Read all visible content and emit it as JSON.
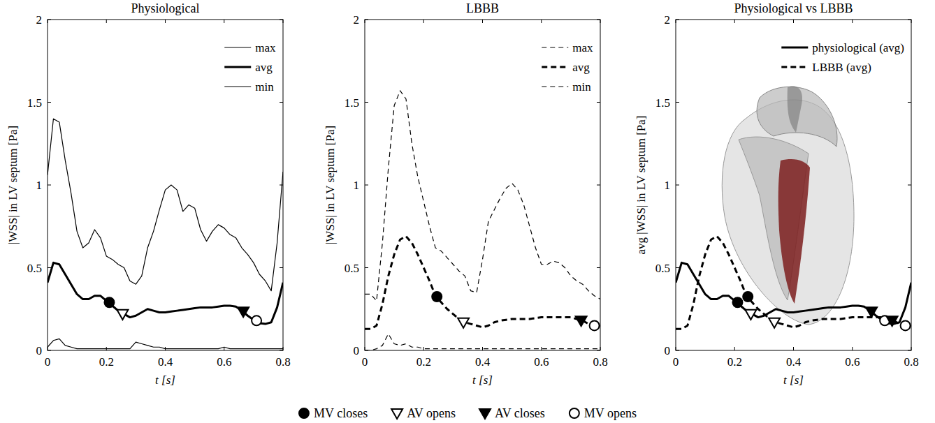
{
  "chart_data": [
    {
      "type": "line",
      "title": "Physiological",
      "x_label": "t [s]",
      "y_label": "|WSS| in LV septum [Pa]",
      "xlim": [
        0,
        0.8
      ],
      "xticks": [
        0,
        0.2,
        0.4,
        0.6,
        0.8
      ],
      "ylim": [
        0,
        2
      ],
      "yticks": [
        0,
        0.5,
        1,
        1.5,
        2
      ],
      "grid": false,
      "legend": "upper right",
      "x": [
        0,
        0.02,
        0.04,
        0.06,
        0.08,
        0.1,
        0.12,
        0.14,
        0.16,
        0.18,
        0.2,
        0.22,
        0.24,
        0.26,
        0.28,
        0.3,
        0.32,
        0.34,
        0.36,
        0.38,
        0.4,
        0.42,
        0.44,
        0.46,
        0.48,
        0.5,
        0.52,
        0.54,
        0.56,
        0.58,
        0.6,
        0.62,
        0.64,
        0.66,
        0.68,
        0.7,
        0.72,
        0.74,
        0.76,
        0.78,
        0.8
      ],
      "series": [
        {
          "name": "max",
          "color": "#000000",
          "line_style": "solid",
          "values": [
            1.06,
            1.4,
            1.38,
            1.15,
            0.95,
            0.72,
            0.62,
            0.65,
            0.73,
            0.68,
            0.57,
            0.55,
            0.52,
            0.5,
            0.42,
            0.4,
            0.45,
            0.62,
            0.72,
            0.85,
            0.97,
            1.0,
            0.97,
            0.84,
            0.88,
            0.86,
            0.73,
            0.66,
            0.72,
            0.76,
            0.74,
            0.7,
            0.68,
            0.62,
            0.58,
            0.53,
            0.46,
            0.42,
            0.36,
            0.65,
            1.08
          ]
        },
        {
          "name": "avg",
          "color": "#000000",
          "line_style": "solid",
          "values": [
            0.41,
            0.53,
            0.52,
            0.46,
            0.4,
            0.34,
            0.31,
            0.31,
            0.33,
            0.33,
            0.3,
            0.27,
            0.24,
            0.22,
            0.2,
            0.21,
            0.23,
            0.25,
            0.24,
            0.23,
            0.23,
            0.235,
            0.24,
            0.245,
            0.25,
            0.255,
            0.26,
            0.26,
            0.26,
            0.265,
            0.27,
            0.27,
            0.265,
            0.24,
            0.21,
            0.185,
            0.165,
            0.16,
            0.17,
            0.26,
            0.41
          ],
          "events": {
            "x": [
              0.21,
              0.255,
              0.665,
              0.71
            ],
            "values": [
              0.29,
              0.22,
              0.235,
              0.18
            ]
          }
        },
        {
          "name": "min",
          "color": "#000000",
          "line_style": "solid",
          "values": [
            0.02,
            0.06,
            0.07,
            0.03,
            0.02,
            0.01,
            0.01,
            0.01,
            0.01,
            0.01,
            0.01,
            0.01,
            0.01,
            0.01,
            0.01,
            0.05,
            0.04,
            0.03,
            0.02,
            0.02,
            0.01,
            0.01,
            0.01,
            0.01,
            0.01,
            0.01,
            0.01,
            0.01,
            0.01,
            0.01,
            0.02,
            0.01,
            0.01,
            0.01,
            0.01,
            0.01,
            0.01,
            0.01,
            0.01,
            0.01,
            0.01
          ]
        }
      ]
    },
    {
      "type": "line",
      "title": "LBBB",
      "x_label": "t [s]",
      "y_label": "|WSS| in LV septum [Pa]",
      "xlim": [
        0,
        0.8
      ],
      "xticks": [
        0,
        0.2,
        0.4,
        0.6,
        0.8
      ],
      "ylim": [
        0,
        2
      ],
      "yticks": [
        0,
        0.5,
        1,
        1.5,
        2
      ],
      "grid": false,
      "legend": "upper right",
      "x": [
        0,
        0.02,
        0.04,
        0.06,
        0.08,
        0.1,
        0.12,
        0.14,
        0.16,
        0.18,
        0.2,
        0.22,
        0.24,
        0.26,
        0.28,
        0.3,
        0.32,
        0.34,
        0.36,
        0.38,
        0.4,
        0.42,
        0.44,
        0.46,
        0.48,
        0.5,
        0.52,
        0.54,
        0.56,
        0.58,
        0.6,
        0.62,
        0.64,
        0.66,
        0.68,
        0.7,
        0.72,
        0.74,
        0.76,
        0.78,
        0.8
      ],
      "series": [
        {
          "name": "max",
          "color": "#000000",
          "line_style": "dashed",
          "values": [
            0.34,
            0.34,
            0.3,
            0.65,
            1.1,
            1.48,
            1.57,
            1.52,
            1.25,
            1.05,
            0.9,
            0.75,
            0.62,
            0.6,
            0.56,
            0.52,
            0.48,
            0.45,
            0.36,
            0.35,
            0.55,
            0.78,
            0.85,
            0.92,
            0.98,
            1.01,
            0.97,
            0.88,
            0.75,
            0.62,
            0.52,
            0.52,
            0.54,
            0.53,
            0.5,
            0.45,
            0.42,
            0.4,
            0.36,
            0.33,
            0.31
          ]
        },
        {
          "name": "avg",
          "color": "#000000",
          "line_style": "dashed",
          "values": [
            0.13,
            0.13,
            0.15,
            0.28,
            0.45,
            0.58,
            0.67,
            0.69,
            0.65,
            0.58,
            0.5,
            0.42,
            0.33,
            0.29,
            0.25,
            0.22,
            0.19,
            0.17,
            0.16,
            0.15,
            0.14,
            0.15,
            0.17,
            0.18,
            0.185,
            0.19,
            0.19,
            0.19,
            0.19,
            0.195,
            0.2,
            0.2,
            0.2,
            0.2,
            0.2,
            0.2,
            0.19,
            0.18,
            0.16,
            0.15,
            0.15
          ],
          "events": {
            "x": [
              0.245,
              0.335,
              0.735,
              0.78
            ],
            "values": [
              0.325,
              0.17,
              0.18,
              0.15
            ]
          }
        },
        {
          "name": "min",
          "color": "#000000",
          "line_style": "dashed",
          "values": [
            0.0,
            0.0,
            0.01,
            0.03,
            0.1,
            0.04,
            0.03,
            0.04,
            0.02,
            0.02,
            0.01,
            0.01,
            0.01,
            0.01,
            0.01,
            0.01,
            0.01,
            0.01,
            0.01,
            0.01,
            0.01,
            0.01,
            0.01,
            0.01,
            0.01,
            0.01,
            0.01,
            0.01,
            0.01,
            0.01,
            0.01,
            0.01,
            0.01,
            0.01,
            0.01,
            0.01,
            0.01,
            0.01,
            0.01,
            0.01,
            0.01
          ]
        }
      ]
    },
    {
      "type": "line",
      "title": "Physiological vs LBBB",
      "x_label": "t [s]",
      "y_label": "avg |WSS| in LV septum [Pa]",
      "xlim": [
        0,
        0.8
      ],
      "xticks": [
        0,
        0.2,
        0.4,
        0.6,
        0.8
      ],
      "ylim": [
        0,
        2
      ],
      "yticks": [
        0,
        0.5,
        1,
        1.5,
        2
      ],
      "grid": false,
      "legend": "upper right",
      "x": [
        0,
        0.02,
        0.04,
        0.06,
        0.08,
        0.1,
        0.12,
        0.14,
        0.16,
        0.18,
        0.2,
        0.22,
        0.24,
        0.26,
        0.28,
        0.3,
        0.32,
        0.34,
        0.36,
        0.38,
        0.4,
        0.42,
        0.44,
        0.46,
        0.48,
        0.5,
        0.52,
        0.54,
        0.56,
        0.58,
        0.6,
        0.62,
        0.64,
        0.66,
        0.68,
        0.7,
        0.72,
        0.74,
        0.76,
        0.78,
        0.8
      ],
      "series": [
        {
          "name": "physiological (avg)",
          "color": "#000000",
          "line_style": "solid",
          "values": [
            0.41,
            0.53,
            0.52,
            0.46,
            0.4,
            0.34,
            0.31,
            0.31,
            0.33,
            0.33,
            0.3,
            0.27,
            0.24,
            0.22,
            0.2,
            0.21,
            0.23,
            0.25,
            0.24,
            0.23,
            0.23,
            0.235,
            0.24,
            0.245,
            0.25,
            0.255,
            0.26,
            0.26,
            0.26,
            0.265,
            0.27,
            0.27,
            0.265,
            0.24,
            0.21,
            0.185,
            0.165,
            0.16,
            0.17,
            0.26,
            0.41
          ],
          "events": {
            "x": [
              0.21,
              0.255,
              0.665,
              0.71
            ],
            "values": [
              0.29,
              0.22,
              0.235,
              0.18
            ]
          }
        },
        {
          "name": "LBBB (avg)",
          "color": "#000000",
          "line_style": "dashed",
          "values": [
            0.13,
            0.13,
            0.15,
            0.28,
            0.45,
            0.58,
            0.67,
            0.69,
            0.65,
            0.58,
            0.5,
            0.42,
            0.33,
            0.29,
            0.25,
            0.22,
            0.19,
            0.17,
            0.16,
            0.15,
            0.14,
            0.15,
            0.17,
            0.18,
            0.185,
            0.19,
            0.19,
            0.19,
            0.19,
            0.195,
            0.2,
            0.2,
            0.2,
            0.2,
            0.2,
            0.2,
            0.19,
            0.18,
            0.16,
            0.15,
            0.15
          ],
          "events": {
            "x": [
              0.245,
              0.335,
              0.735,
              0.78
            ],
            "values": [
              0.325,
              0.17,
              0.18,
              0.15
            ]
          }
        }
      ]
    }
  ],
  "event_markers": [
    {
      "label": "MV closes",
      "marker": "circle-filled"
    },
    {
      "label": "AV opens",
      "marker": "triangle-down-open"
    },
    {
      "label": "AV closes",
      "marker": "triangle-down-filled"
    },
    {
      "label": "MV opens",
      "marker": "circle-open"
    }
  ]
}
